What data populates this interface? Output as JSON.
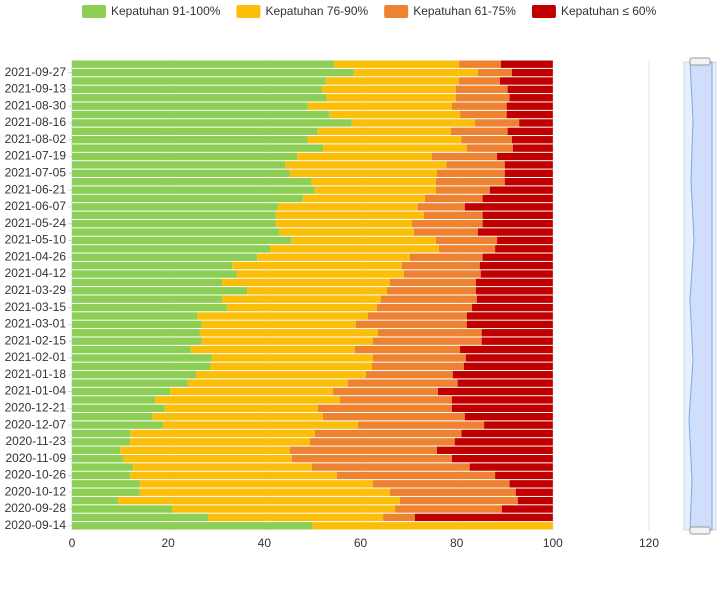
{
  "chart_data": {
    "type": "stacked-bar-horizontal",
    "categories": [
      null,
      "2021-09-27",
      null,
      "2021-09-13",
      null,
      "2021-08-30",
      null,
      "2021-08-16",
      null,
      "2021-08-02",
      null,
      "2021-07-19",
      null,
      "2021-07-05",
      null,
      "2021-06-21",
      null,
      "2021-06-07",
      null,
      "2021-05-24",
      null,
      "2021-05-10",
      null,
      "2021-04-26",
      null,
      "2021-04-12",
      null,
      "2021-03-29",
      null,
      "2021-03-15",
      null,
      "2021-03-01",
      null,
      "2021-02-15",
      null,
      "2021-02-01",
      null,
      "2021-01-18",
      null,
      "2021-01-04",
      null,
      "2020-12-21",
      null,
      "2020-12-07",
      null,
      "2020-11-23",
      null,
      "2020-11-09",
      null,
      "2020-10-26",
      null,
      "2020-10-12",
      null,
      "2020-09-28",
      null,
      "2020-09-14"
    ],
    "series": [
      {
        "name": "Kepatuhan 91-100%",
        "color": "#8dce55",
        "values": [
          54.5,
          58.6,
          52.8,
          52,
          53,
          49,
          53.6,
          58.2,
          51.1,
          49,
          52.2,
          46.8,
          44.3,
          45.3,
          49.7,
          50.5,
          48,
          42.8,
          42.4,
          42.4,
          43.2,
          45.7,
          41.2,
          38.5,
          33.3,
          34.3,
          31.2,
          36.4,
          31.2,
          32.2,
          26,
          27,
          26.6,
          27,
          24.7,
          29.1,
          28.7,
          25.8,
          24.1,
          20.4,
          17.3,
          19.3,
          16.8,
          18.9,
          12.1,
          12.1,
          10,
          10.6,
          12.7,
          12.1,
          14.1,
          14.1,
          9.6,
          20.8,
          28.3,
          50
        ]
      },
      {
        "name": "Kepatuhan 76-90%",
        "color": "#fbbf0b",
        "values": [
          26,
          25.8,
          27.7,
          27.8,
          26.8,
          30,
          27.1,
          25.6,
          27.7,
          32,
          29.9,
          28,
          33.6,
          30.6,
          26,
          25.2,
          25.4,
          29.1,
          30.8,
          28.3,
          27.9,
          30,
          35.1,
          31.8,
          35.3,
          34.7,
          34.9,
          29.1,
          33,
          31.2,
          35.5,
          32,
          37,
          35.6,
          34.1,
          33.5,
          33.7,
          35.3,
          33.3,
          33.9,
          38.4,
          31.8,
          35.4,
          40.6,
          38.4,
          37.4,
          35.3,
          35.1,
          37.2,
          43,
          48.5,
          52,
          58.6,
          46.4,
          36.4,
          50
        ]
      },
      {
        "name": "Kepatuhan 61-75%",
        "color": "#ed8233",
        "values": [
          8.7,
          7.1,
          8.5,
          10.8,
          11.2,
          11.4,
          9.7,
          9.2,
          11.8,
          10.5,
          9.6,
          13.6,
          12.1,
          14.1,
          14.3,
          11.2,
          12,
          9.8,
          12.2,
          14.7,
          13.3,
          12.7,
          11.7,
          15.1,
          16.2,
          16,
          17.9,
          18.5,
          20,
          19.8,
          20.6,
          23.1,
          21.6,
          22.6,
          21.9,
          19.3,
          19.1,
          18.1,
          22.8,
          21.8,
          23.3,
          27.9,
          29.5,
          26.2,
          30.5,
          30.1,
          30.6,
          33.3,
          32.8,
          32.9,
          28.4,
          26.2,
          24.5,
          22.2,
          6.6,
          0
        ]
      },
      {
        "name": "Kepatuhan ≤ 60%",
        "color": "#c00000",
        "values": [
          10.8,
          8.5,
          11,
          9.4,
          9,
          9.6,
          9.6,
          7,
          9.4,
          8.5,
          8.3,
          11.6,
          10,
          10,
          10,
          13.1,
          14.6,
          18.3,
          14.6,
          14.6,
          15.6,
          11.6,
          12,
          14.6,
          15.2,
          15,
          16,
          16,
          15.8,
          16.8,
          17.9,
          17.9,
          14.8,
          14.8,
          19.3,
          18.1,
          18.5,
          20.8,
          19.8,
          23.9,
          21,
          21,
          18.3,
          14.3,
          19,
          20.4,
          24.1,
          21,
          17.3,
          12,
          9,
          7.7,
          7.3,
          10.6,
          28.7,
          0
        ]
      }
    ],
    "xlim": [
      0,
      120
    ],
    "xticks": [
      0,
      20,
      40,
      60,
      80,
      100,
      120
    ],
    "grid": true
  }
}
